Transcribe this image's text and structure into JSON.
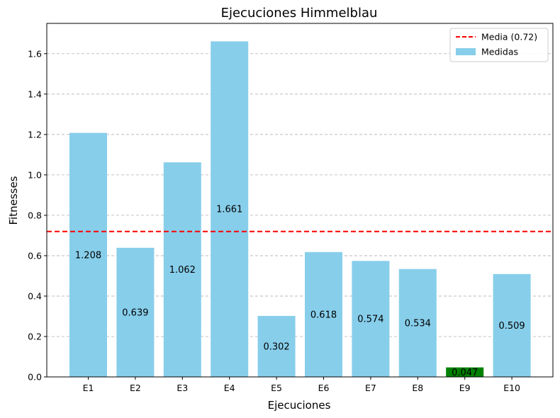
{
  "chart_data": {
    "type": "bar",
    "title": "Ejecuciones Himmelblau",
    "xlabel": "Ejecuciones",
    "ylabel": "Fitnesses",
    "categories": [
      "E1",
      "E2",
      "E3",
      "E4",
      "E5",
      "E6",
      "E7",
      "E8",
      "E9",
      "E10"
    ],
    "values": [
      1.208,
      0.639,
      1.062,
      1.661,
      0.302,
      0.618,
      0.574,
      0.534,
      0.047,
      0.509
    ],
    "value_labels": [
      "1.208",
      "0.639",
      "1.062",
      "1.661",
      "0.302",
      "0.618",
      "0.574",
      "0.534",
      "0.047",
      "0.509"
    ],
    "highlight_index": 8,
    "bar_color": "#87ceeb",
    "highlight_color": "#008000",
    "mean": 0.72,
    "mean_color": "#ff0000",
    "ylim": [
      0,
      1.75
    ],
    "yticks": [
      0.0,
      0.2,
      0.4,
      0.6,
      0.8,
      1.0,
      1.2,
      1.4,
      1.6
    ],
    "ytick_labels": [
      "0.0",
      "0.2",
      "0.4",
      "0.6",
      "0.8",
      "1.0",
      "1.2",
      "1.4",
      "1.6"
    ],
    "grid": "y-dashed",
    "legend_position": "top-right",
    "legend": [
      {
        "label": "Media (0.72)",
        "kind": "dashed-line",
        "color": "#ff0000"
      },
      {
        "label": "Medidas",
        "kind": "patch",
        "color": "#87ceeb"
      }
    ]
  }
}
